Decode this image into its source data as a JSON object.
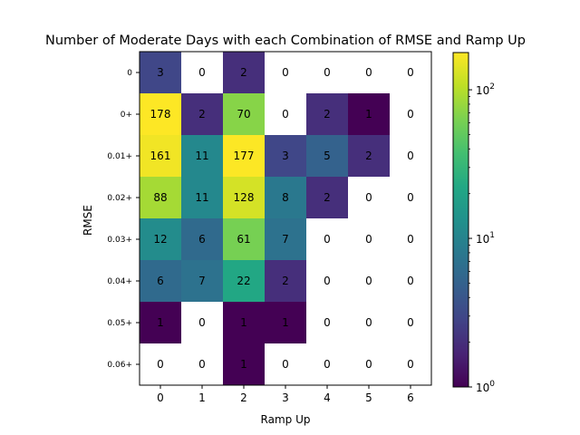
{
  "chart_data": {
    "type": "heatmap",
    "title": "Number of Moderate Days with each Combination of RMSE and Ramp Up",
    "xlabel": "Ramp Up",
    "ylabel": "RMSE",
    "x_categories": [
      "0",
      "1",
      "2",
      "3",
      "4",
      "5",
      "6"
    ],
    "y_categories": [
      "0",
      "0+",
      "0.01+",
      "0.02+",
      "0.03+",
      "0.04+",
      "0.05+",
      "0.06+"
    ],
    "values": [
      [
        3,
        0,
        2,
        0,
        0,
        0,
        0
      ],
      [
        178,
        2,
        70,
        0,
        2,
        1,
        0
      ],
      [
        161,
        11,
        177,
        3,
        5,
        2,
        0
      ],
      [
        88,
        11,
        128,
        8,
        2,
        0,
        0
      ],
      [
        12,
        6,
        61,
        7,
        0,
        0,
        0
      ],
      [
        6,
        7,
        22,
        2,
        0,
        0,
        0
      ],
      [
        1,
        0,
        1,
        1,
        0,
        0,
        0
      ],
      [
        0,
        0,
        1,
        0,
        0,
        0,
        0
      ]
    ],
    "color_scale": "log",
    "colormap": "viridis",
    "colorbar": {
      "vmin": 1,
      "vmax": 178,
      "tick_labels": [
        {
          "mant": "10",
          "exp": "0",
          "value": 1
        },
        {
          "mant": "10",
          "exp": "1",
          "value": 10
        },
        {
          "mant": "10",
          "exp": "2",
          "value": 100
        }
      ]
    },
    "zero_cells_colored": false,
    "grid": false
  }
}
